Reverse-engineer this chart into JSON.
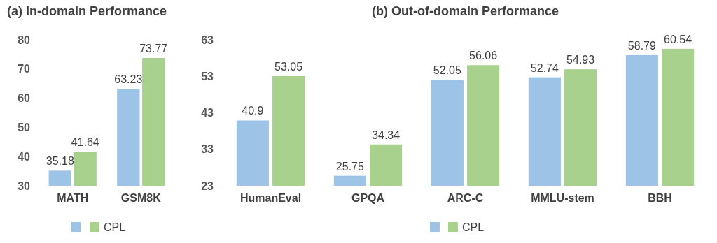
{
  "chart_data": [
    {
      "type": "bar",
      "title": "(a) In-domain Performance",
      "categories": [
        "MATH",
        "GSM8K"
      ],
      "series": [
        {
          "color": "#9dc3e6",
          "values": [
            35.18,
            63.23
          ]
        },
        {
          "name": "CPL",
          "color": "#a9d18e",
          "values": [
            41.64,
            73.77
          ]
        }
      ],
      "ylim": [
        30,
        80
      ],
      "yticks": [
        30,
        40,
        50,
        60,
        70,
        80
      ],
      "grid": false,
      "legend": "bottom",
      "data_labels": true
    },
    {
      "type": "bar",
      "title": "(b) Out-of-domain Performance",
      "categories": [
        "HumanEval",
        "GPQA",
        "ARC-C",
        "MMLU-stem",
        "BBH"
      ],
      "series": [
        {
          "color": "#9dc3e6",
          "values": [
            40.9,
            25.75,
            52.05,
            52.74,
            58.79
          ]
        },
        {
          "name": "CPL",
          "color": "#a9d18e",
          "values": [
            53.05,
            34.34,
            56.06,
            54.93,
            60.54
          ]
        }
      ],
      "ylim": [
        23,
        63
      ],
      "yticks": [
        23,
        33,
        43,
        53,
        63
      ],
      "grid": false,
      "legend": "bottom",
      "data_labels": true
    }
  ]
}
